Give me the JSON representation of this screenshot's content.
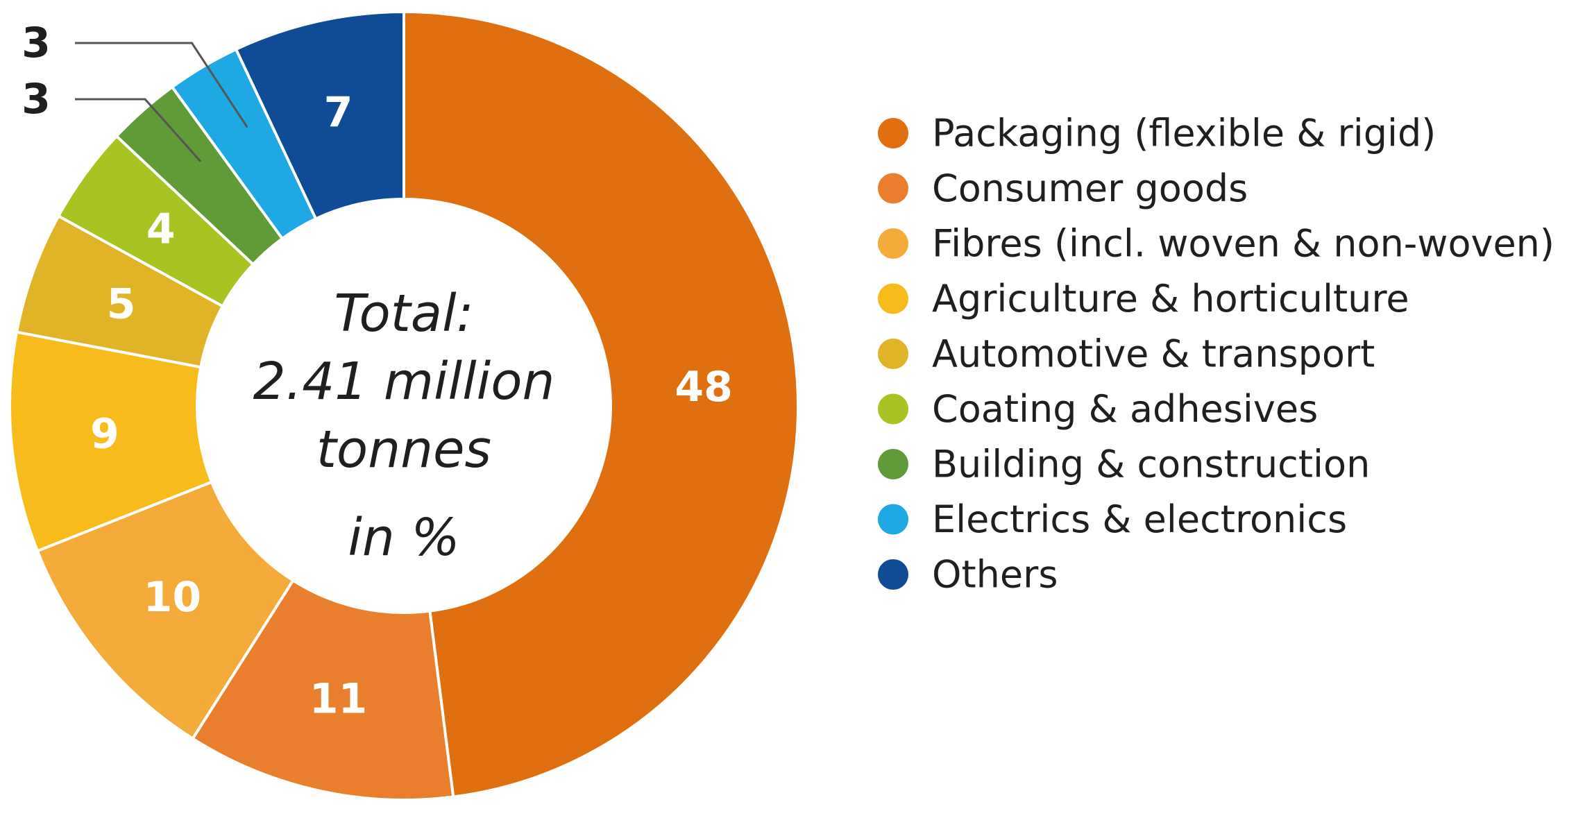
{
  "chart_data": {
    "type": "pie",
    "variant": "donut",
    "title": "",
    "center_text": [
      "Total:",
      "2.41 million",
      "tonnes",
      "in %"
    ],
    "unit": "%",
    "categories": [
      "Packaging (flexible & rigid)",
      "Consumer goods",
      "Fibres (incl. woven & non-woven)",
      "Agriculture & horticulture",
      "Automotive & transport",
      "Coating & adhesives",
      "Building & construction",
      "Electrics & electronics",
      "Others"
    ],
    "values": [
      48,
      11,
      10,
      9,
      5,
      4,
      3,
      3,
      7
    ],
    "labels": [
      "48",
      "11",
      "10",
      "9",
      "5",
      "4",
      "3",
      "3",
      "7"
    ],
    "colors": [
      "#e0700f",
      "#e97f2d",
      "#f4ab3a",
      "#f7bc1c",
      "#e0b426",
      "#a7c423",
      "#5f9b37",
      "#1ea8e4",
      "#0f4c95"
    ],
    "legend_position": "right"
  }
}
